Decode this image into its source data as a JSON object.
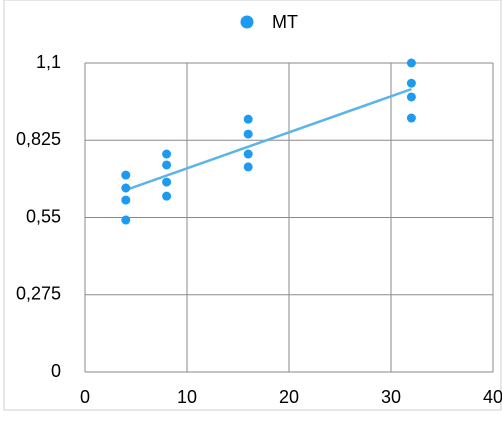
{
  "chart_data": {
    "type": "scatter",
    "series": [
      {
        "name": "MT",
        "color": "#1e9bf0",
        "x": [
          4,
          4,
          4,
          4,
          8,
          8,
          8,
          8,
          16,
          16,
          16,
          16,
          32,
          32,
          32,
          32
        ],
        "values": [
          0.701,
          0.655,
          0.612,
          0.541,
          0.776,
          0.737,
          0.676,
          0.626,
          0.9,
          0.847,
          0.776,
          0.73,
          1.1,
          1.028,
          0.979,
          0.904
        ]
      }
    ],
    "trendline": {
      "color": "#5ab4ea",
      "x": [
        4,
        32
      ],
      "values": [
        0.648,
        1.007
      ]
    },
    "xlim": [
      0,
      40
    ],
    "xticks": [
      0,
      10,
      20,
      30,
      40
    ],
    "ylim": [
      0,
      1.1
    ],
    "yticks": [
      0,
      {
        "value": 0.275,
        "label": "0,275"
      },
      {
        "value": 0.55,
        "label": "0,55"
      },
      {
        "value": 0.825,
        "label": "0,825"
      },
      {
        "value": 1.1,
        "label": "1,1"
      }
    ],
    "grid": true,
    "legend": "top"
  }
}
